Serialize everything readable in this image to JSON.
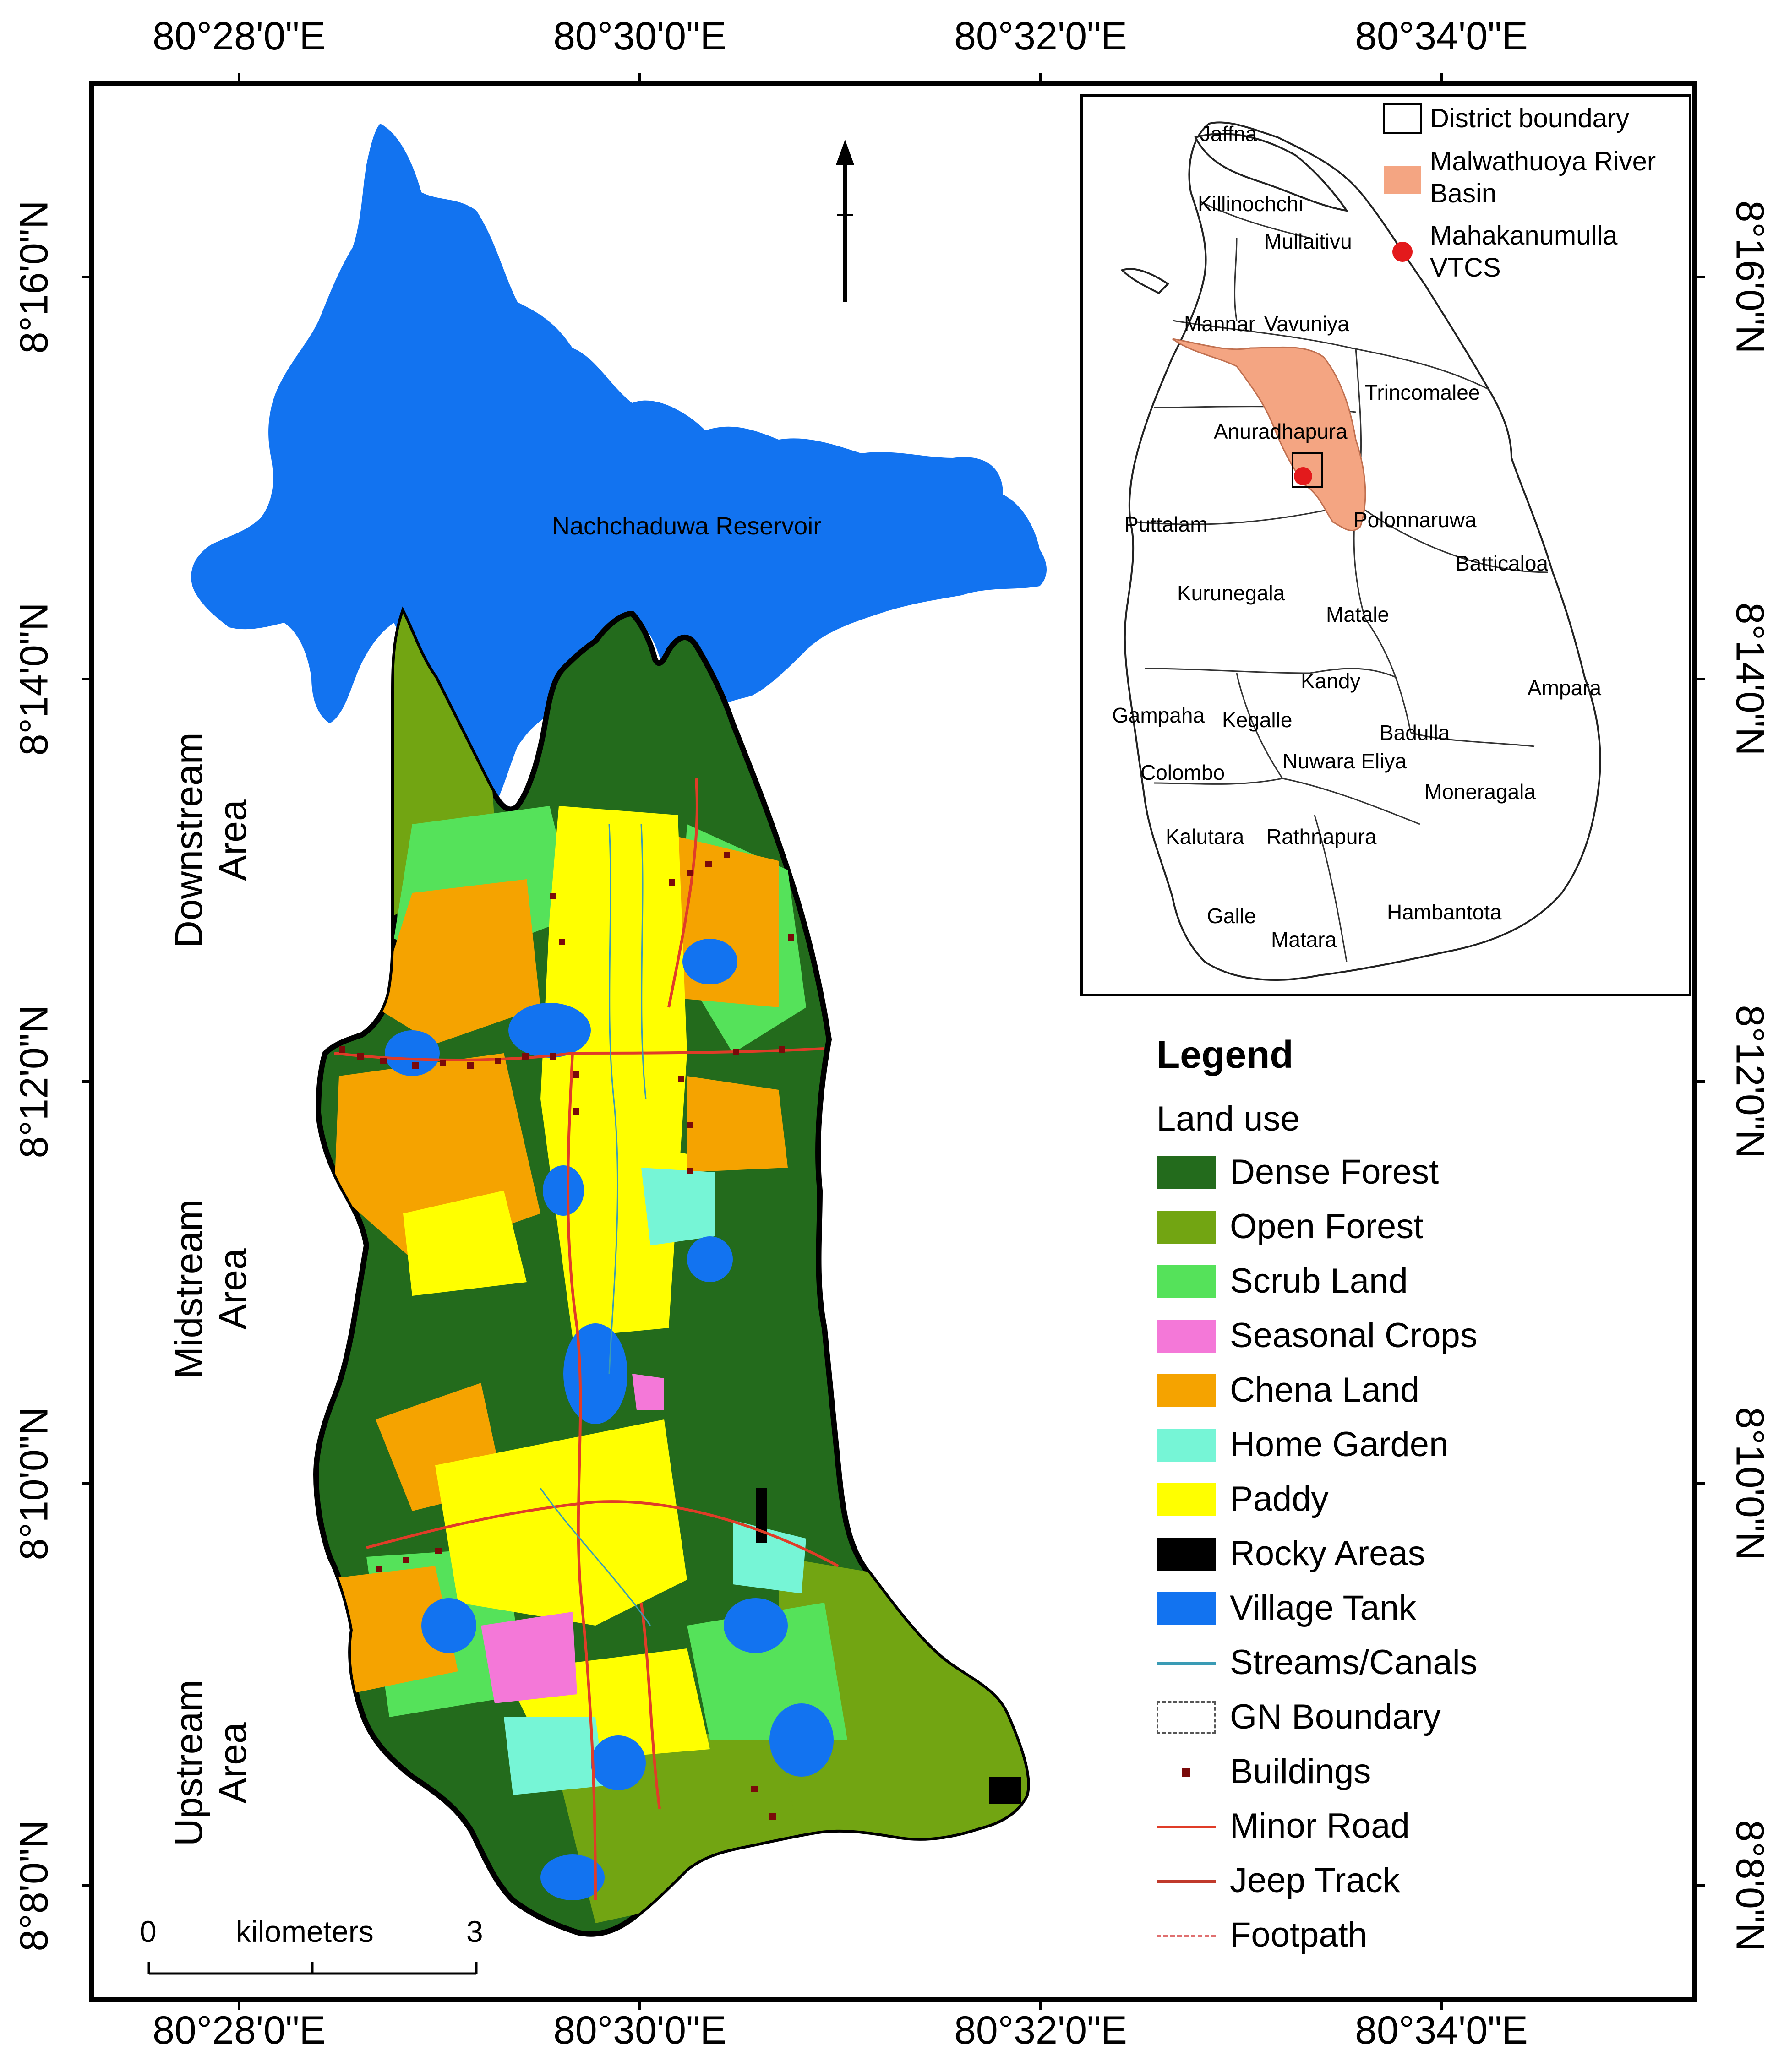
{
  "coordinates": {
    "top_longitudes": [
      "80°28'0\"E",
      "80°30'0\"E",
      "80°32'0\"E",
      "80°34'0\"E"
    ],
    "bottom_longitudes": [
      "80°28'0\"E",
      "80°30'0\"E",
      "80°32'0\"E",
      "80°34'0\"E"
    ],
    "left_latitudes": [
      "8°16'0\"N",
      "8°14'0\"N",
      "8°12'0\"N",
      "8°10'0\"N",
      "8°8'0\"N"
    ],
    "right_latitudes": [
      "8°16'0\"N",
      "8°14'0\"N",
      "8°12'0\"N",
      "8°10'0\"N",
      "8°8'0\"N"
    ]
  },
  "map": {
    "reservoir_label": "Nachchaduwa Reservoir",
    "area_labels": [
      {
        "line1": "Downstream",
        "line2": "Area"
      },
      {
        "line1": "Midstream",
        "line2": "Area"
      },
      {
        "line1": "Upstream",
        "line2": "Area"
      }
    ]
  },
  "inset": {
    "legend": {
      "district_boundary": "District boundary",
      "river_basin_line1": "Malwathuoya River",
      "river_basin_line2": "Basin",
      "vtcs_line1": "Mahakanumulla",
      "vtcs_line2": "VTCS"
    },
    "districts": [
      "Jaffna",
      "Killinochchi",
      "Mullaitivu",
      "Mannar",
      "Vavuniya",
      "Trincomalee",
      "Anuradhapura",
      "Puttalam",
      "Polonnaruwa",
      "Batticaloa",
      "Kurunegala",
      "Matale",
      "Kandy",
      "Ampara",
      "Gampaha",
      "Kegalle",
      "Badulla",
      "Colombo",
      "Nuwara Eliya",
      "Moneragala",
      "Kalutara",
      "Rathnapura",
      "Galle",
      "Matara",
      "Hambantota"
    ],
    "colors": {
      "basin": "#f4a582",
      "vtcs": "#e31a1c"
    }
  },
  "legend": {
    "title": "Legend",
    "subtitle": "Land use",
    "items": [
      {
        "label": "Dense Forest",
        "color": "#236b1c",
        "kind": "fill"
      },
      {
        "label": "Open Forest",
        "color": "#72a512",
        "kind": "fill"
      },
      {
        "label": "Scrub Land",
        "color": "#55e25a",
        "kind": "fill"
      },
      {
        "label": "Seasonal Crops",
        "color": "#f478d8",
        "kind": "fill"
      },
      {
        "label": "Chena Land",
        "color": "#f5a300",
        "kind": "fill"
      },
      {
        "label": "Home Garden",
        "color": "#76f5d6",
        "kind": "fill"
      },
      {
        "label": "Paddy",
        "color": "#ffff00",
        "kind": "fill"
      },
      {
        "label": "Rocky Areas",
        "color": "#000000",
        "kind": "fill"
      },
      {
        "label": "Village Tank",
        "color": "#1273f0",
        "kind": "fill"
      },
      {
        "label": "Streams/Canals",
        "color": "#3a9bb5",
        "kind": "line"
      },
      {
        "label": "GN Boundary",
        "color": "#555555",
        "kind": "dashbox"
      },
      {
        "label": "Buildings",
        "color": "#7a0a0a",
        "kind": "dot"
      },
      {
        "label": "Minor Road",
        "color": "#e03c28",
        "kind": "line"
      },
      {
        "label": "Jeep Track",
        "color": "#c0392b",
        "kind": "line"
      },
      {
        "label": "Footpath",
        "color": "#e07070",
        "kind": "dash"
      }
    ]
  },
  "scale": {
    "start": "0",
    "end": "3",
    "unit": "kilometers"
  }
}
